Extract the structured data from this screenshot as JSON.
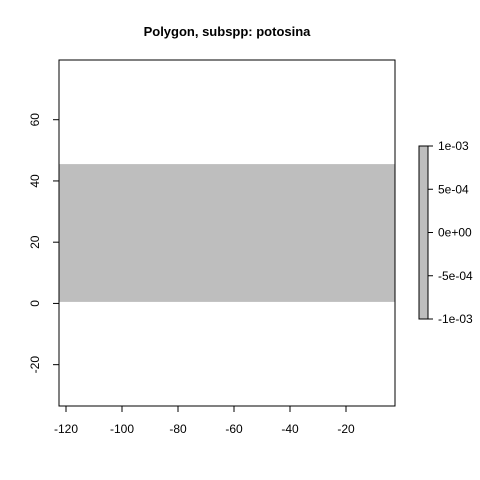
{
  "chart_data": {
    "type": "heatmap",
    "title": "Polygon, subspp: potosina",
    "xlabel": "",
    "ylabel": "",
    "xlim": [
      -122.5,
      -2.5
    ],
    "ylim": [
      -33.5,
      79.5
    ],
    "x_ticks": [
      -120,
      -100,
      -80,
      -60,
      -40,
      -20
    ],
    "x_tick_labels": [
      "-120",
      "-100",
      "-80",
      "-60",
      "-40",
      "-20"
    ],
    "y_ticks": [
      -20,
      0,
      20,
      40,
      60
    ],
    "y_tick_labels": [
      "-20",
      "0",
      "20",
      "40",
      "60"
    ],
    "raster": {
      "xmin": -122.5,
      "xmax": -2.5,
      "ymin": 0.5,
      "ymax": 45.5,
      "value": 0,
      "color": "#bebebe"
    },
    "background_color": "#ffffff",
    "legend": {
      "placement": "right",
      "type": "colorbar",
      "ticks": [
        0.001,
        0.0005,
        0,
        -0.0005,
        -0.001
      ],
      "tick_labels": [
        "1e-03",
        "5e-04",
        "0e+00",
        "-5e-04",
        "-1e-03"
      ],
      "range": [
        -0.001,
        0.001
      ],
      "color": "#bebebe"
    },
    "grid": false
  }
}
